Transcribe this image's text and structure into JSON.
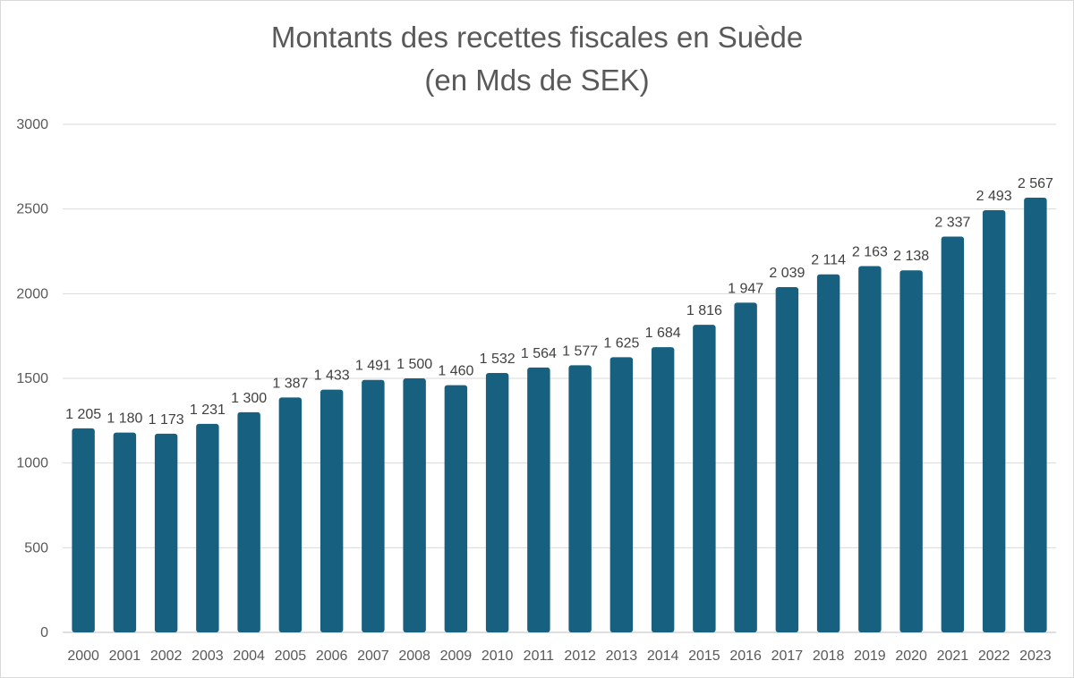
{
  "chart_data": {
    "type": "bar",
    "title": "Montants des recettes fiscales en Suède",
    "subtitle": "(en Mds de SEK)",
    "xlabel": "",
    "ylabel": "",
    "ylim": [
      0,
      3000
    ],
    "yticks": [
      0,
      500,
      1000,
      1500,
      2000,
      2500,
      3000
    ],
    "ytick_labels": [
      "0",
      "500",
      "1000",
      "1500",
      "2000",
      "2500",
      "3000"
    ],
    "grid": true,
    "legend": "none",
    "bar_color": "#17607f",
    "categories": [
      "2000",
      "2001",
      "2002",
      "2003",
      "2004",
      "2005",
      "2006",
      "2007",
      "2008",
      "2009",
      "2010",
      "2011",
      "2012",
      "2013",
      "2014",
      "2015",
      "2016",
      "2017",
      "2018",
      "2019",
      "2020",
      "2021",
      "2022",
      "2023"
    ],
    "values": [
      1205,
      1180,
      1173,
      1231,
      1300,
      1387,
      1433,
      1491,
      1500,
      1460,
      1532,
      1564,
      1577,
      1625,
      1684,
      1816,
      1947,
      2039,
      2114,
      2163,
      2138,
      2337,
      2493,
      2567
    ],
    "data_labels": [
      "1 205",
      "1 180",
      "1 173",
      "1 231",
      "1 300",
      "1 387",
      "1 433",
      "1 491",
      "1 500",
      "1 460",
      "1 532",
      "1 564",
      "1 577",
      "1 625",
      "1 684",
      "1 816",
      "1 947",
      "2 039",
      "2 114",
      "2 163",
      "2 138",
      "2 337",
      "2 493",
      "2 567"
    ]
  }
}
